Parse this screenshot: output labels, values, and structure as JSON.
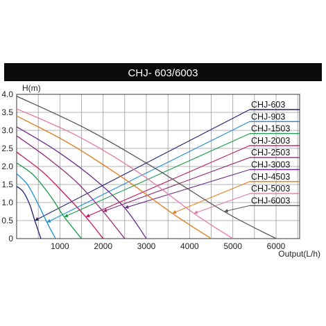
{
  "chart_data": {
    "type": "line",
    "title": "CHJ- 603/6003",
    "ylabel": "H(m)",
    "xlabel": "Output(L/h)",
    "xlim": [
      0,
      6000
    ],
    "ylim": [
      0,
      4.0
    ],
    "x_ticks": [
      "1000",
      "2000",
      "3000",
      "4000",
      "5000",
      "6000"
    ],
    "y_ticks": [
      "0",
      "0.5",
      "1.0",
      "1.5",
      "2.0",
      "2.5",
      "3.0",
      "3.5",
      "4.0"
    ],
    "grid": true,
    "legend_position": "right",
    "series": [
      {
        "name": "CHJ-603",
        "color": "#1e1e6e",
        "points": [
          [
            0,
            1.45
          ],
          [
            150,
            1.3
          ],
          [
            300,
            0.95
          ],
          [
            420,
            0.5
          ],
          [
            560,
            0
          ]
        ]
      },
      {
        "name": "CHJ-903",
        "color": "#1a8ed6",
        "points": [
          [
            0,
            1.8
          ],
          [
            250,
            1.5
          ],
          [
            500,
            0.95
          ],
          [
            700,
            0.45
          ],
          [
            900,
            0
          ]
        ]
      },
      {
        "name": "CHJ-1503",
        "color": "#1a9a4a",
        "points": [
          [
            0,
            2.1
          ],
          [
            400,
            1.75
          ],
          [
            800,
            1.15
          ],
          [
            1100,
            0.6
          ],
          [
            1500,
            0
          ]
        ]
      },
      {
        "name": "CHJ-2003",
        "color": "#c21a5e",
        "points": [
          [
            0,
            2.4
          ],
          [
            600,
            1.85
          ],
          [
            1100,
            1.25
          ],
          [
            1600,
            0.6
          ],
          [
            2000,
            0
          ]
        ]
      },
      {
        "name": "CHJ-2503",
        "color": "#8e2a78",
        "points": [
          [
            0,
            2.85
          ],
          [
            700,
            2.25
          ],
          [
            1400,
            1.55
          ],
          [
            2000,
            0.75
          ],
          [
            2500,
            0
          ]
        ]
      },
      {
        "name": "CHJ-3003",
        "color": "#6a2a8a",
        "points": [
          [
            0,
            3.1
          ],
          [
            900,
            2.45
          ],
          [
            1800,
            1.65
          ],
          [
            2500,
            0.85
          ],
          [
            3000,
            0
          ]
        ]
      },
      {
        "name": "CHJ-4503",
        "color": "#e07d1a",
        "points": [
          [
            0,
            3.4
          ],
          [
            1200,
            2.65
          ],
          [
            2500,
            1.65
          ],
          [
            3600,
            0.7
          ],
          [
            4500,
            0
          ]
        ]
      },
      {
        "name": "CHJ-5003",
        "color": "#e27aa8",
        "points": [
          [
            0,
            3.6
          ],
          [
            1400,
            2.85
          ],
          [
            2800,
            1.85
          ],
          [
            4100,
            0.7
          ],
          [
            5000,
            0
          ]
        ]
      },
      {
        "name": "CHJ-6003",
        "color": "#555555",
        "points": [
          [
            0,
            3.95
          ],
          [
            1600,
            3.05
          ],
          [
            3200,
            1.95
          ],
          [
            4800,
            0.75
          ],
          [
            6000,
            0
          ]
        ]
      }
    ]
  }
}
